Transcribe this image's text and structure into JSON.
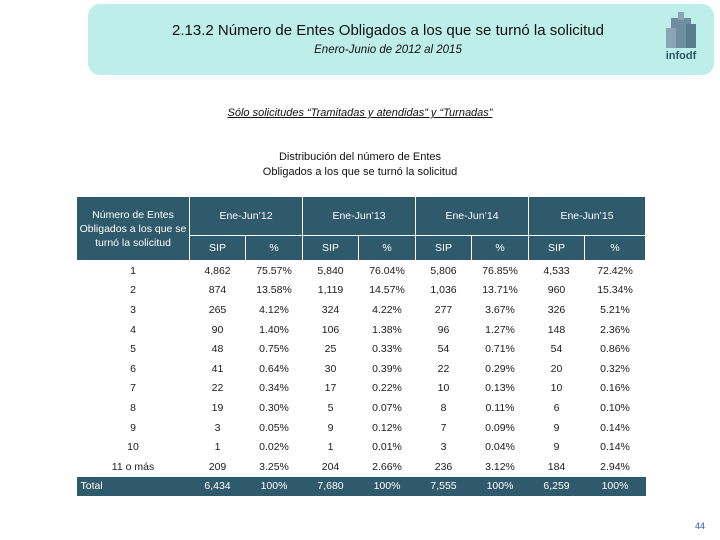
{
  "header": {
    "title": "2.13.2 Número de Entes Obligados a los que se turnó la solicitud",
    "subtitle": "Enero-Junio de 2012 al 2015",
    "logo_text": "infodf"
  },
  "note": "Sólo solicitudes “Tramitadas y atendidas” y “Turnadas”",
  "caption_line1": "Distribución del número de Entes",
  "caption_line2": "Obligados a los que se turnó la solicitud",
  "table": {
    "corner_label": "Número de Entes Obligados a los que se turnó la solicitud",
    "periods": [
      "Ene-Jun’12",
      "Ene-Jun’13",
      "Ene-Jun’14",
      "Ene-Jun’15"
    ],
    "sub_headers": [
      "SIP",
      "%"
    ],
    "rows": [
      {
        "label": "1",
        "cells": [
          "4,862",
          "75.57%",
          "5,840",
          "76.04%",
          "5,806",
          "76.85%",
          "4,533",
          "72.42%"
        ]
      },
      {
        "label": "2",
        "cells": [
          "874",
          "13.58%",
          "1,119",
          "14.57%",
          "1,036",
          "13.71%",
          "960",
          "15.34%"
        ]
      },
      {
        "label": "3",
        "cells": [
          "265",
          "4.12%",
          "324",
          "4.22%",
          "277",
          "3.67%",
          "326",
          "5.21%"
        ]
      },
      {
        "label": "4",
        "cells": [
          "90",
          "1.40%",
          "106",
          "1.38%",
          "96",
          "1.27%",
          "148",
          "2.36%"
        ]
      },
      {
        "label": "5",
        "cells": [
          "48",
          "0.75%",
          "25",
          "0.33%",
          "54",
          "0.71%",
          "54",
          "0.86%"
        ]
      },
      {
        "label": "6",
        "cells": [
          "41",
          "0.64%",
          "30",
          "0.39%",
          "22",
          "0.29%",
          "20",
          "0.32%"
        ]
      },
      {
        "label": "7",
        "cells": [
          "22",
          "0.34%",
          "17",
          "0.22%",
          "10",
          "0.13%",
          "10",
          "0.16%"
        ]
      },
      {
        "label": "8",
        "cells": [
          "19",
          "0.30%",
          "5",
          "0.07%",
          "8",
          "0.11%",
          "6",
          "0.10%"
        ]
      },
      {
        "label": "9",
        "cells": [
          "3",
          "0.05%",
          "9",
          "0.12%",
          "7",
          "0.09%",
          "9",
          "0.14%"
        ]
      },
      {
        "label": "10",
        "cells": [
          "1",
          "0.02%",
          "1",
          "0.01%",
          "3",
          "0.04%",
          "9",
          "0.14%"
        ]
      },
      {
        "label": "11 o más",
        "cells": [
          "209",
          "3.25%",
          "204",
          "2.66%",
          "236",
          "3.12%",
          "184",
          "2.94%"
        ]
      }
    ],
    "total": {
      "label": "Total",
      "cells": [
        "6,434",
        "100%",
        "7,680",
        "100%",
        "7,555",
        "100%",
        "6,259",
        "100%"
      ]
    }
  },
  "page_number": "44",
  "colors": {
    "header_band": "#bdeeea",
    "table_header": "#2f5a6b",
    "page_number": "#3355aa"
  }
}
